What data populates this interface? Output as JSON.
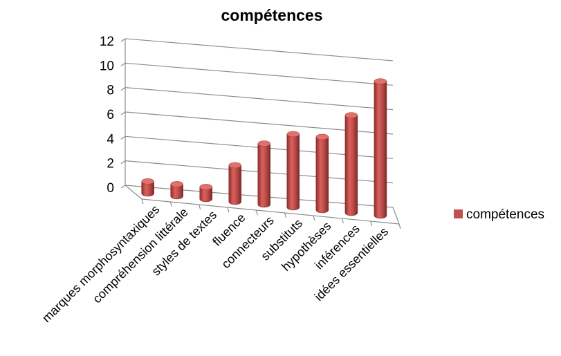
{
  "chart_data": {
    "type": "bar",
    "title": "compétences",
    "categories": [
      "marques morphosyntaxiques",
      "compréhension littérale",
      "styles de textes",
      "fluence",
      "connecteurs",
      "substituts",
      "hypothèses",
      "inférences",
      "idées essentielles"
    ],
    "series": [
      {
        "name": "compétences",
        "values": [
          1,
          1,
          1,
          3,
          5,
          6,
          6,
          8,
          11
        ],
        "color": "#c0504d"
      }
    ],
    "yticks": [
      "0",
      "2",
      "4",
      "6",
      "8",
      "10",
      "12"
    ],
    "ylim": [
      0,
      12
    ],
    "xlabel": "",
    "ylabel": "",
    "grid": true,
    "legend_position": "right"
  }
}
